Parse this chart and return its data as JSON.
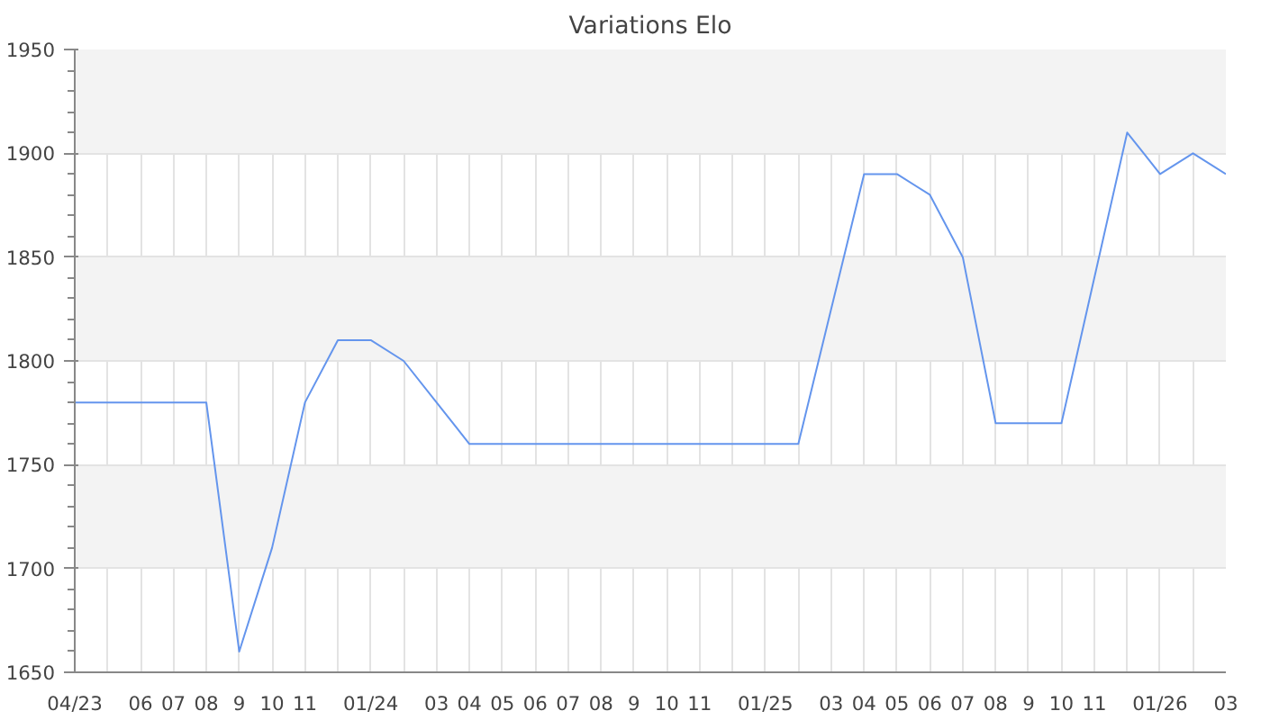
{
  "chart_data": {
    "type": "line",
    "title": "Variations Elo",
    "x": [
      "2023-04",
      "2023-05",
      "2023-06",
      "2023-07",
      "2023-08",
      "2023-09",
      "2023-10",
      "2023-11",
      "2023-12",
      "2024-01",
      "2024-02",
      "2024-03",
      "2024-04",
      "2024-05",
      "2024-06",
      "2024-07",
      "2024-08",
      "2024-09",
      "2024-10",
      "2024-11",
      "2024-12",
      "2025-01",
      "2025-02",
      "2025-03",
      "2025-04",
      "2025-05",
      "2025-06",
      "2025-07",
      "2025-08",
      "2025-09",
      "2025-10",
      "2025-11",
      "2025-12",
      "2026-01",
      "2026-02",
      "2026-03"
    ],
    "series": [
      {
        "color": "#6495ed",
        "values": [
          1780,
          1780,
          1780,
          1780,
          1780,
          1660,
          1710,
          1780,
          1810,
          1810,
          1800,
          1780,
          1760,
          1760,
          1760,
          1760,
          1760,
          1760,
          1760,
          1760,
          1760,
          1760,
          1760,
          1825,
          1890,
          1890,
          1880,
          1850,
          1770,
          1770,
          1770,
          1840,
          1910,
          1890,
          1900,
          1890
        ]
      }
    ],
    "xlim": [
      "2023-04",
      "2026-03"
    ],
    "xticks": [
      {
        "value": "2023-04",
        "label": "04/23"
      },
      {
        "value": "2023-05",
        "label": null
      },
      {
        "value": "2023-06",
        "label": "06"
      },
      {
        "value": "2023-07",
        "label": "07"
      },
      {
        "value": "2023-08",
        "label": "08"
      },
      {
        "value": "2023-09",
        "label": "9"
      },
      {
        "value": "2023-10",
        "label": "10"
      },
      {
        "value": "2023-11",
        "label": "11"
      },
      {
        "value": "2023-12",
        "label": null
      },
      {
        "value": "2024-01",
        "label": "01/24"
      },
      {
        "value": "2024-02",
        "label": null
      },
      {
        "value": "2024-03",
        "label": "03"
      },
      {
        "value": "2024-04",
        "label": "04"
      },
      {
        "value": "2024-05",
        "label": "05"
      },
      {
        "value": "2024-06",
        "label": "06"
      },
      {
        "value": "2024-07",
        "label": "07"
      },
      {
        "value": "2024-08",
        "label": "08"
      },
      {
        "value": "2024-09",
        "label": "9"
      },
      {
        "value": "2024-10",
        "label": "10"
      },
      {
        "value": "2024-11",
        "label": "11"
      },
      {
        "value": "2024-12",
        "label": null
      },
      {
        "value": "2025-01",
        "label": "01/25"
      },
      {
        "value": "2025-02",
        "label": null
      },
      {
        "value": "2025-03",
        "label": "03"
      },
      {
        "value": "2025-04",
        "label": "04"
      },
      {
        "value": "2025-05",
        "label": "05"
      },
      {
        "value": "2025-06",
        "label": "06"
      },
      {
        "value": "2025-07",
        "label": "07"
      },
      {
        "value": "2025-08",
        "label": "08"
      },
      {
        "value": "2025-09",
        "label": "9"
      },
      {
        "value": "2025-10",
        "label": "10"
      },
      {
        "value": "2025-11",
        "label": "11"
      },
      {
        "value": "2025-12",
        "label": null
      },
      {
        "value": "2026-01",
        "label": "01/26"
      },
      {
        "value": "2026-02",
        "label": null
      },
      {
        "value": "2026-03",
        "label": "03"
      }
    ],
    "ylim": [
      1650,
      1950
    ],
    "yticks": [
      1650,
      1700,
      1750,
      1800,
      1850,
      1900,
      1950
    ],
    "grid": true,
    "marker": "none",
    "line_style": "solid"
  }
}
